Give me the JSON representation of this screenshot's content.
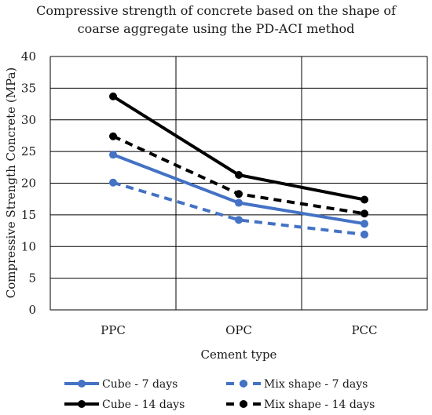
{
  "chart_data": {
    "type": "line",
    "title_lines": [
      "Compressive strength of concrete based on the shape of",
      "coarse aggregate using the PD-ACI method"
    ],
    "xlabel": "Cement type",
    "ylabel": "Compressive Strength Concrete (MPa)",
    "categories": [
      "PPC",
      "OPC",
      "PCC"
    ],
    "ylim": [
      0,
      40
    ],
    "yticks": [
      0,
      5,
      10,
      15,
      20,
      25,
      30,
      35,
      40
    ],
    "grid": true,
    "legend_position": "bottom",
    "series": [
      {
        "name": "Cube - 7 days",
        "values": [
          24.5,
          16.9,
          13.6
        ],
        "color": "#4472c4",
        "dash": "solid"
      },
      {
        "name": "Mix shape - 7 days",
        "values": [
          20.1,
          14.2,
          11.9
        ],
        "color": "#4472c4",
        "dash": "dashed"
      },
      {
        "name": "Cube - 14 days",
        "values": [
          33.7,
          21.3,
          17.4
        ],
        "color": "#000000",
        "dash": "solid"
      },
      {
        "name": "Mix shape - 14 days",
        "values": [
          27.4,
          18.3,
          15.2
        ],
        "color": "#000000",
        "dash": "dashed"
      }
    ]
  }
}
